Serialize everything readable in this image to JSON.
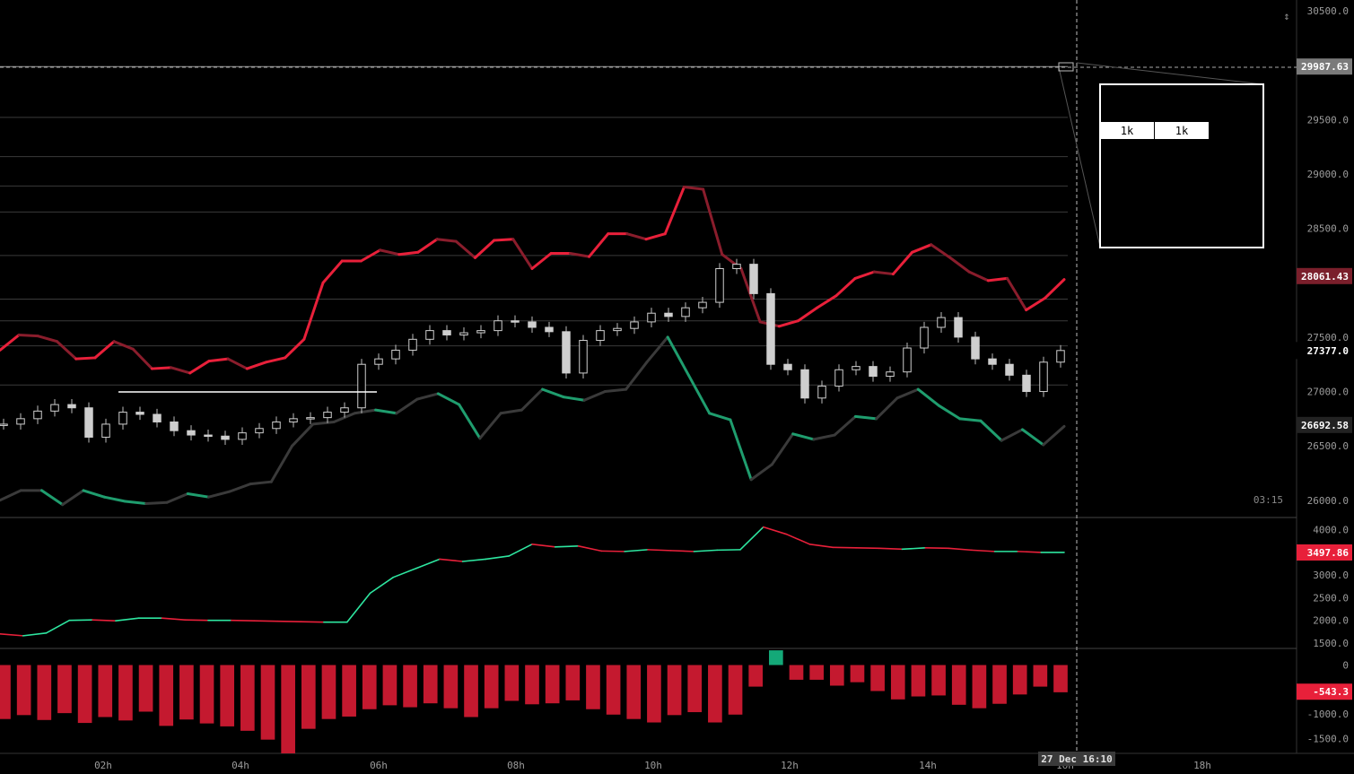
{
  "chart_data": {
    "type": "line",
    "x_ticks": [
      "02h",
      "04h",
      "06h",
      "08h",
      "10h",
      "12h",
      "14h",
      "16h",
      "18h"
    ],
    "crosshair_time": "27 Dec 16:10",
    "countdown": "03:15",
    "panels": [
      {
        "id": "price",
        "kind": "candlestick",
        "ylim": [
          25850,
          30550
        ],
        "y_ticks": [
          "30500.0",
          "29500.0",
          "29000.0",
          "28500.0",
          "27500.0",
          "27000.0",
          "26500.0",
          "26000.0"
        ],
        "markers": [
          {
            "label": "29987.63",
            "value": 29987.63,
            "color": "#7a7a7a"
          },
          {
            "label": "28061.43",
            "value": 28061.43,
            "color": "#7a1f2b"
          },
          {
            "label": "27377.0",
            "value": 27377.0,
            "color": "#000000"
          },
          {
            "label": "26692.58",
            "value": 26692.58,
            "color": "#222222"
          }
        ],
        "hlines": [
          29987.63,
          29520,
          29160,
          28890,
          28650,
          28250,
          27850,
          27650,
          27420,
          27060
        ],
        "series": [
          {
            "role": "upper-band",
            "up_color": "#e8203a",
            "dn_color": "#8a1d2c",
            "values": [
              27380,
              27520,
              27510,
              27460,
              27300,
              27310,
              27460,
              27390,
              27210,
              27220,
              27170,
              27280,
              27300,
              27210,
              27270,
              27310,
              27480,
              28000,
              28200,
              28200,
              28300,
              28260,
              28280,
              28400,
              28380,
              28230,
              28390,
              28400,
              28130,
              28270,
              28270,
              28240,
              28450,
              28450,
              28400,
              28450,
              28880,
              28860,
              28260,
              28130,
              27640,
              27600,
              27650,
              27770,
              27880,
              28040,
              28100,
              28080,
              28280,
              28350,
              28230,
              28100,
              28020,
              28040,
              27750,
              27860,
              28030
            ]
          },
          {
            "role": "lower-band",
            "up_color": "#3a3a3a",
            "dn_color": "#1f9d6e",
            "values": [
              26000,
              26090,
              26090,
              25960,
              26090,
              26030,
              25990,
              25970,
              25980,
              26060,
              26030,
              26080,
              26150,
              26170,
              26500,
              26700,
              26720,
              26800,
              26830,
              26800,
              26930,
              26980,
              26880,
              26570,
              26800,
              26830,
              27020,
              26950,
              26920,
              27000,
              27020,
              27270,
              27500,
              27150,
              26800,
              26740,
              26190,
              26330,
              26610,
              26560,
              26600,
              26770,
              26750,
              26940,
              27020,
              26870,
              26750,
              26730,
              26550,
              26650,
              26510,
              26680
            ]
          },
          {
            "role": "candles",
            "color": "#cfcfcf",
            "values": [
              26700,
              26750,
              26820,
              26880,
              26850,
              26580,
              26700,
              26810,
              26790,
              26720,
              26640,
              26600,
              26590,
              26560,
              26620,
              26660,
              26720,
              26750,
              26760,
              26810,
              26850,
              27250,
              27300,
              27380,
              27480,
              27560,
              27520,
              27540,
              27560,
              27650,
              27640,
              27590,
              27550,
              27170,
              27470,
              27560,
              27580,
              27640,
              27720,
              27690,
              27770,
              27820,
              28130,
              28170,
              27900,
              27250,
              27200,
              26940,
              27050,
              27200,
              27230,
              27140,
              27180,
              27400,
              27590,
              27680,
              27500,
              27300,
              27250,
              27150,
              27000,
              27270,
              27377
            ]
          }
        ]
      },
      {
        "id": "indicator",
        "kind": "line",
        "ylim": [
          1400,
          4250
        ],
        "y_ticks": [
          "4000.0",
          "3500.0",
          "3000.0",
          "2500.0",
          "2000.0",
          "1500.0"
        ],
        "markers": [
          {
            "label": "3497.86",
            "value": 3497.86,
            "color": "#e8203a"
          }
        ],
        "series": [
          {
            "role": "main",
            "up_color": "#2ee6a0",
            "dn_color": "#e8203a",
            "values": [
              1700,
              1660,
              1720,
              2000,
              2010,
              1990,
              2050,
              2050,
              2010,
              2000,
              2000,
              1990,
              1980,
              1970,
              1960,
              1960,
              2600,
              2950,
              3150,
              3350,
              3300,
              3350,
              3420,
              3680,
              3620,
              3640,
              3530,
              3520,
              3560,
              3540,
              3520,
              3550,
              3560,
              4060,
              3900,
              3680,
              3610,
              3600,
              3590,
              3570,
              3600,
              3590,
              3550,
              3520,
              3520,
              3500,
              3500
            ]
          }
        ]
      },
      {
        "id": "histogram",
        "kind": "bar",
        "ylim": [
          -1800,
          320
        ],
        "y_ticks": [
          "0",
          "-1000.0",
          "-1500.0"
        ],
        "markers": [
          {
            "label": "-543.3",
            "value": -543.3,
            "color": "#e8203a"
          }
        ],
        "series": [
          {
            "role": "bars",
            "up_color": "#14a978",
            "dn_color": "#c4192f",
            "values": [
              -1100,
              -1020,
              -1120,
              -980,
              -1180,
              -1060,
              -1130,
              -950,
              -1240,
              -1110,
              -1190,
              -1250,
              -1340,
              -1520,
              -1800,
              -1300,
              -1100,
              -1050,
              -900,
              -820,
              -860,
              -780,
              -880,
              -1060,
              -880,
              -730,
              -800,
              -780,
              -720,
              -900,
              -1010,
              -1100,
              -1170,
              -1020,
              -960,
              -1170,
              -1010,
              -440,
              300,
              -300,
              -300,
              -420,
              -350,
              -530,
              -700,
              -640,
              -620,
              -810,
              -880,
              -790,
              -600,
              -440,
              -555
            ]
          }
        ]
      }
    ],
    "zoom_box": {
      "labels": [
        "1k",
        "1k"
      ]
    }
  }
}
